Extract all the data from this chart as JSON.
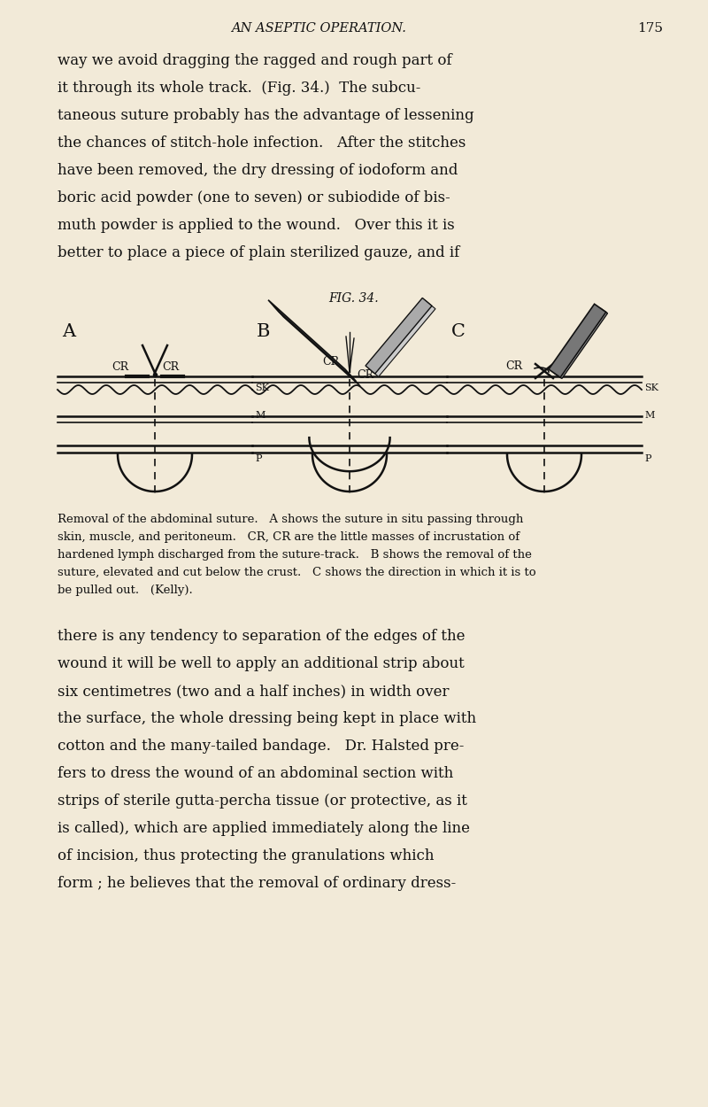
{
  "bg_color": "#f2ead8",
  "text_color": "#111111",
  "header_text": "AN ASEPTIC OPERATION.",
  "page_number": "175",
  "fig_label": "FIG. 34.",
  "body_text_top": [
    "way we avoid dragging the ragged and rough part of",
    "it through its whole track.  (Fig. 34.)  The subcu-",
    "taneous suture probably has the advantage of lessening",
    "the chances of stitch-hole infection.   After the stitches",
    "have been removed, the dry dressing of iodoform and",
    "boric acid powder (one to seven) or subiodide of bis-",
    "muth powder is applied to the wound.   Over this it is",
    "better to place a piece of plain sterilized gauze, and if"
  ],
  "caption_lines": [
    "Removal of the abdominal suture.   A shows the suture in situ passing through",
    "skin, muscle, and peritoneum.   CR, CR are the little masses of incrustation of",
    "hardened lymph discharged from the suture-track.   B shows the removal of the",
    "suture, elevated and cut below the crust.   C shows the direction in which it is to",
    "be pulled out.   (Kelly)."
  ],
  "body_text_bottom": [
    "there is any tendency to separation of the edges of the",
    "wound it will be well to apply an additional strip about",
    "six centimetres (two and a half inches) in width over",
    "the surface, the whole dressing being kept in place with",
    "cotton and the many-tailed bandage.   Dr. Halsted pre-",
    "fers to dress the wound of an abdominal section with",
    "strips of sterile gutta-percha tissue (or protective, as it",
    "is called), which are applied immediately along the line",
    "of incision, thus protecting the granulations which",
    "form ; he believes that the removal of ordinary dress-"
  ],
  "line_color": "#111111",
  "gray_color": "#555555",
  "light_gray": "#888888"
}
